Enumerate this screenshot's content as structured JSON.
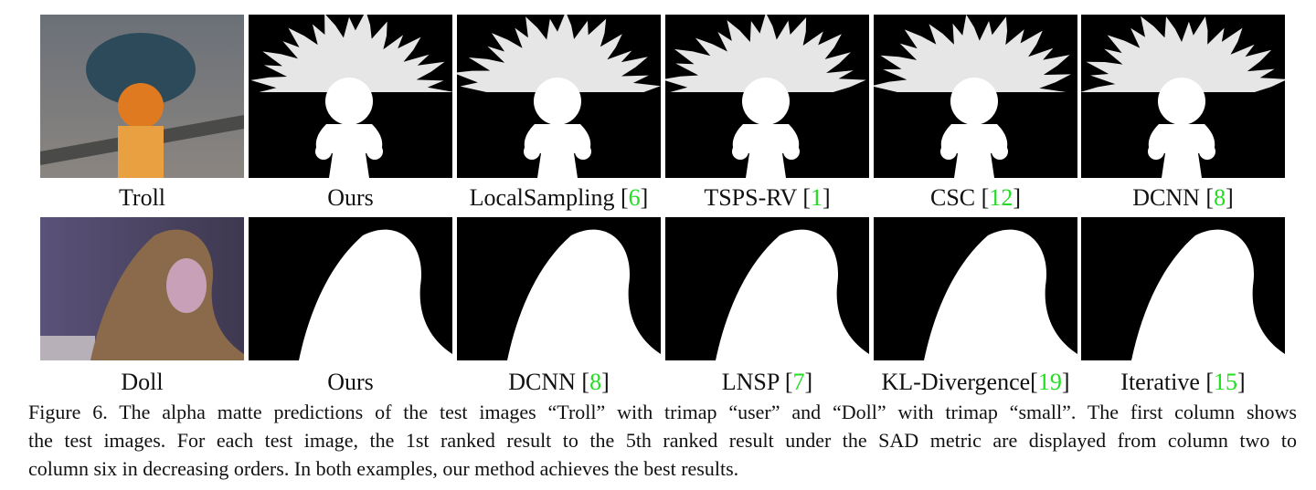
{
  "figure": {
    "rows": [
      {
        "panels": [
          {
            "label": [
              "Troll"
            ]
          },
          {
            "label": [
              "Ours"
            ]
          },
          {
            "label": [
              "LocalSampling [",
              "6",
              "]"
            ]
          },
          {
            "label": [
              "TSPS-RV [",
              "1",
              "]"
            ]
          },
          {
            "label": [
              "CSC [",
              "12",
              "]"
            ]
          },
          {
            "label": [
              "DCNN [",
              "8",
              "]"
            ]
          }
        ]
      },
      {
        "panels": [
          {
            "label": [
              "Doll"
            ]
          },
          {
            "label": [
              "Ours"
            ]
          },
          {
            "label": [
              "DCNN [",
              "8",
              "]"
            ]
          },
          {
            "label": [
              "LNSP [",
              "7",
              "]"
            ]
          },
          {
            "label": [
              "KL-Divergence[",
              "19",
              "]"
            ]
          },
          {
            "label": [
              "Iterative [",
              "15",
              "]"
            ]
          }
        ]
      }
    ],
    "caption": [
      "Figure 6. The alpha matte predictions of the test images “Troll” with trimap “user” and “Doll” with trimap “small”. The first column shows",
      "the test images. For each test image, the 1st ranked result to the 5th ranked result under the SAD metric are displayed from column two to",
      "column six in decreasing orders. In both examples, our method achieves the best results."
    ]
  }
}
